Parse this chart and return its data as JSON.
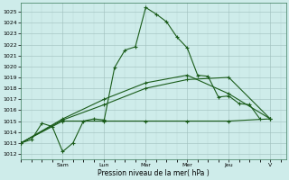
{
  "xlabel": "Pression niveau de la mer( hPa )",
  "ylim": [
    1011.5,
    1025.8
  ],
  "xlim": [
    0,
    25.5
  ],
  "yticks": [
    1012,
    1013,
    1014,
    1015,
    1016,
    1017,
    1018,
    1019,
    1020,
    1021,
    1022,
    1023,
    1024,
    1025
  ],
  "day_labels": [
    "Sam",
    "Lun",
    "Mar",
    "Mer",
    "Jeu",
    "V"
  ],
  "day_positions": [
    4.0,
    8.0,
    12.0,
    16.0,
    20.0,
    24.0
  ],
  "bg_color": "#ceecea",
  "line_color": "#1a5c1a",
  "grid_major_color": "#9fbfbc",
  "grid_minor_color": "#b8d8d5",
  "series": [
    {
      "x": [
        0,
        1,
        2,
        3,
        4,
        5,
        6,
        7,
        8,
        9,
        10,
        11,
        12,
        13,
        14,
        15,
        16,
        17,
        18,
        19,
        20,
        21,
        22,
        23
      ],
      "y": [
        1013.0,
        1013.3,
        1014.8,
        1014.5,
        1012.2,
        1013.0,
        1015.0,
        1015.2,
        1015.1,
        1019.9,
        1021.5,
        1021.8,
        1025.4,
        1024.8,
        1024.1,
        1022.7,
        1021.7,
        1019.2,
        1019.1,
        1017.2,
        1017.3,
        1016.6,
        1016.5,
        1015.2
      ]
    },
    {
      "x": [
        0,
        4,
        8,
        12,
        16,
        20,
        24
      ],
      "y": [
        1013.0,
        1015.1,
        1016.5,
        1018.0,
        1018.8,
        1019.0,
        1015.2
      ]
    },
    {
      "x": [
        0,
        4,
        8,
        12,
        16,
        20,
        24
      ],
      "y": [
        1013.0,
        1015.2,
        1017.0,
        1018.5,
        1019.2,
        1017.5,
        1015.2
      ]
    },
    {
      "x": [
        0,
        4,
        8,
        12,
        16,
        20,
        24
      ],
      "y": [
        1013.0,
        1015.0,
        1015.0,
        1015.0,
        1015.0,
        1015.0,
        1015.2
      ]
    }
  ]
}
